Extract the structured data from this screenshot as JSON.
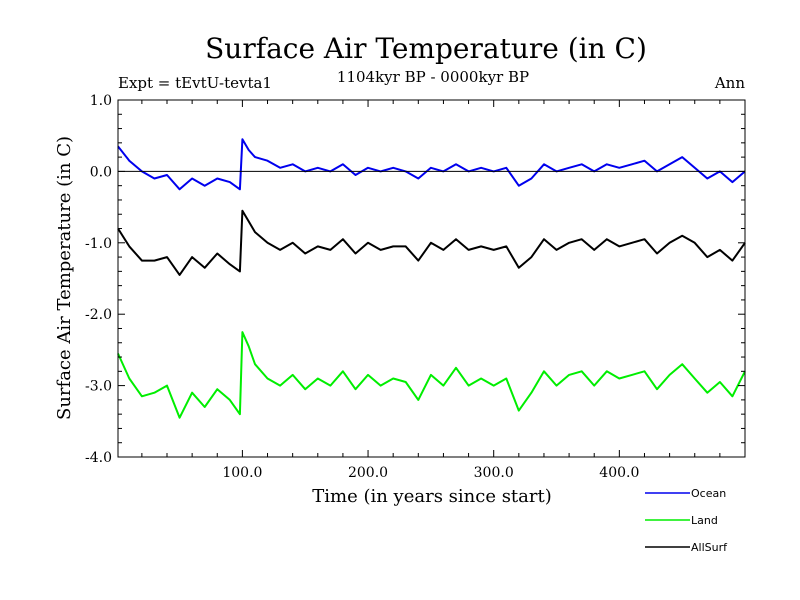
{
  "chart_data": {
    "type": "line",
    "title": "Surface Air Temperature (in C)",
    "subtitle_left": "Expt = tEvtU-tevta1",
    "subtitle_center": "1104kyr BP - 0000kyr BP",
    "subtitle_right": "Ann",
    "xlabel": "Time (in years since start)",
    "ylabel": "Surface Air Temperature (in C)",
    "xlim": [
      1,
      500
    ],
    "ylim": [
      -4.0,
      1.0
    ],
    "x_ticks": [
      100,
      200,
      300,
      400
    ],
    "x_tick_labels": [
      "100.0",
      "200.0",
      "300.0",
      "400.0"
    ],
    "y_ticks": [
      1.0,
      0.0,
      -1.0,
      -2.0,
      -3.0,
      -4.0
    ],
    "y_tick_labels": [
      "1.0",
      "0.0",
      "-1.0",
      "-2.0",
      "-3.0",
      "-4.0"
    ],
    "reference_line": 0.0,
    "series": [
      {
        "name": "Ocean",
        "color": "#0000ee",
        "x": [
          1,
          10,
          20,
          30,
          40,
          50,
          60,
          70,
          80,
          90,
          98,
          100,
          105,
          110,
          120,
          130,
          140,
          150,
          160,
          170,
          180,
          190,
          200,
          210,
          220,
          230,
          240,
          250,
          260,
          270,
          280,
          290,
          300,
          310,
          320,
          330,
          340,
          350,
          360,
          370,
          380,
          390,
          400,
          410,
          420,
          430,
          440,
          450,
          460,
          470,
          480,
          490,
          500
        ],
        "values": [
          0.35,
          0.15,
          0.0,
          -0.1,
          -0.05,
          -0.25,
          -0.1,
          -0.2,
          -0.1,
          -0.15,
          -0.25,
          0.45,
          0.3,
          0.2,
          0.15,
          0.05,
          0.1,
          0.0,
          0.05,
          0.0,
          0.1,
          -0.05,
          0.05,
          0.0,
          0.05,
          0.0,
          -0.1,
          0.05,
          0.0,
          0.1,
          0.0,
          0.05,
          0.0,
          0.05,
          -0.2,
          -0.1,
          0.1,
          0.0,
          0.05,
          0.1,
          0.0,
          0.1,
          0.05,
          0.1,
          0.15,
          0.0,
          0.1,
          0.2,
          0.05,
          -0.1,
          0.0,
          -0.15,
          0.0
        ]
      },
      {
        "name": "Land",
        "color": "#00ee00",
        "x": [
          1,
          10,
          20,
          30,
          40,
          50,
          60,
          70,
          80,
          90,
          98,
          100,
          105,
          110,
          120,
          130,
          140,
          150,
          160,
          170,
          180,
          190,
          200,
          210,
          220,
          230,
          240,
          250,
          260,
          270,
          280,
          290,
          300,
          310,
          320,
          330,
          340,
          350,
          360,
          370,
          380,
          390,
          400,
          410,
          420,
          430,
          440,
          450,
          460,
          470,
          480,
          490,
          500
        ],
        "values": [
          -2.55,
          -2.9,
          -3.15,
          -3.1,
          -3.0,
          -3.45,
          -3.1,
          -3.3,
          -3.05,
          -3.2,
          -3.4,
          -2.25,
          -2.45,
          -2.7,
          -2.9,
          -3.0,
          -2.85,
          -3.05,
          -2.9,
          -3.0,
          -2.8,
          -3.05,
          -2.85,
          -3.0,
          -2.9,
          -2.95,
          -3.2,
          -2.85,
          -3.0,
          -2.75,
          -3.0,
          -2.9,
          -3.0,
          -2.9,
          -3.35,
          -3.1,
          -2.8,
          -3.0,
          -2.85,
          -2.8,
          -3.0,
          -2.8,
          -2.9,
          -2.85,
          -2.8,
          -3.05,
          -2.85,
          -2.7,
          -2.9,
          -3.1,
          -2.95,
          -3.15,
          -2.8
        ]
      },
      {
        "name": "AllSurf",
        "color": "#000000",
        "x": [
          1,
          10,
          20,
          30,
          40,
          50,
          60,
          70,
          80,
          90,
          98,
          100,
          105,
          110,
          120,
          130,
          140,
          150,
          160,
          170,
          180,
          190,
          200,
          210,
          220,
          230,
          240,
          250,
          260,
          270,
          280,
          290,
          300,
          310,
          320,
          330,
          340,
          350,
          360,
          370,
          380,
          390,
          400,
          410,
          420,
          430,
          440,
          450,
          460,
          470,
          480,
          490,
          500
        ],
        "values": [
          -0.8,
          -1.05,
          -1.25,
          -1.25,
          -1.2,
          -1.45,
          -1.2,
          -1.35,
          -1.15,
          -1.3,
          -1.4,
          -0.55,
          -0.7,
          -0.85,
          -1.0,
          -1.1,
          -1.0,
          -1.15,
          -1.05,
          -1.1,
          -0.95,
          -1.15,
          -1.0,
          -1.1,
          -1.05,
          -1.05,
          -1.25,
          -1.0,
          -1.1,
          -0.95,
          -1.1,
          -1.05,
          -1.1,
          -1.05,
          -1.35,
          -1.2,
          -0.95,
          -1.1,
          -1.0,
          -0.95,
          -1.1,
          -0.95,
          -1.05,
          -1.0,
          -0.95,
          -1.15,
          -1.0,
          -0.9,
          -1.0,
          -1.2,
          -1.1,
          -1.25,
          -1.0
        ]
      }
    ],
    "legend_position": "bottom-right"
  }
}
